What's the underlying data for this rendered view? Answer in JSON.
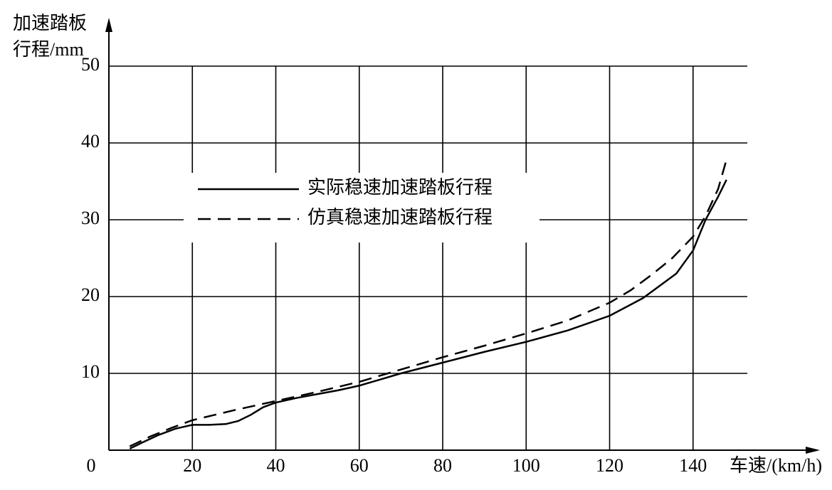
{
  "chart_data": {
    "type": "line",
    "y_label_lines": [
      "加速踏板",
      "行程/mm"
    ],
    "x_label": "车速/(km/h)",
    "xlim": [
      0,
      153
    ],
    "xticks": [
      0,
      20,
      40,
      60,
      80,
      100,
      120,
      140
    ],
    "ylim": [
      0,
      50
    ],
    "yticks": [
      10,
      20,
      30,
      40,
      50
    ],
    "grid": true,
    "series": [
      {
        "name": "实际稳速加速踏板行程",
        "color": "#000000",
        "dash": false,
        "x": [
          5,
          8,
          12,
          16,
          20,
          24,
          28,
          31,
          34,
          37,
          40,
          45,
          50,
          55,
          60,
          65,
          70,
          80,
          90,
          100,
          110,
          120,
          128,
          136,
          140,
          143,
          146,
          148
        ],
        "values": [
          0.2,
          1,
          2,
          2.8,
          3.3,
          3.3,
          3.4,
          3.8,
          4.6,
          5.6,
          6.2,
          6.8,
          7.3,
          7.8,
          8.4,
          9.2,
          10,
          11.4,
          12.8,
          14.1,
          15.6,
          17.5,
          19.8,
          23,
          26,
          30,
          33,
          35.2
        ]
      },
      {
        "name": "仿真稳速加速踏板行程",
        "color": "#000000",
        "dash": true,
        "x": [
          5,
          10,
          15,
          20,
          30,
          40,
          50,
          60,
          70,
          80,
          90,
          100,
          110,
          120,
          125,
          130,
          135,
          140,
          143,
          146,
          148
        ],
        "values": [
          0.5,
          1.8,
          2.9,
          3.9,
          5.2,
          6.4,
          7.6,
          8.9,
          10.5,
          12.1,
          13.6,
          15.2,
          16.9,
          19.2,
          20.8,
          22.8,
          25,
          27.8,
          30.5,
          34,
          37.8
        ]
      }
    ]
  }
}
